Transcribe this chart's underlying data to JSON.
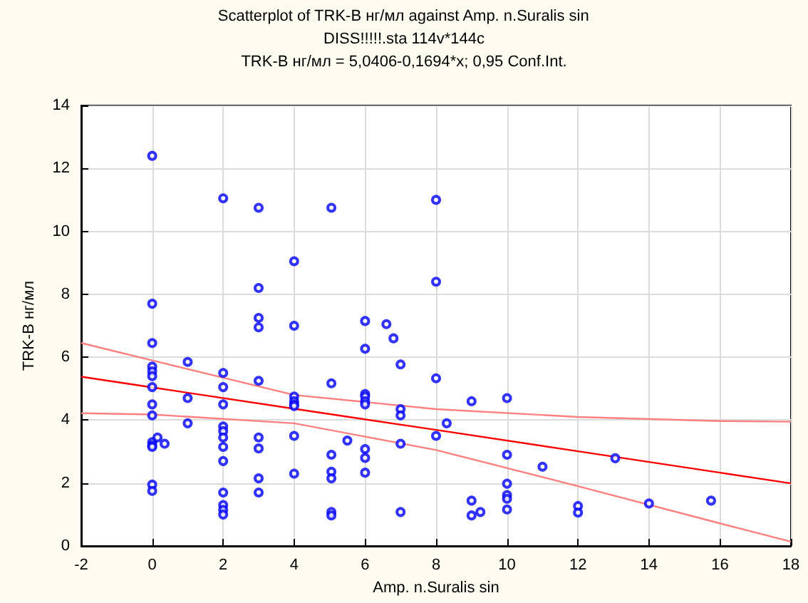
{
  "chart_data": {
    "type": "scatter",
    "title": "Scatterplot of TRK-B нг/мл against Amp. n.Suralis sin",
    "subtitle": "DISS!!!!!.sta 114v*144c",
    "annotations": [
      "TRK-B нг/мл = 5,0406-0,1694*x; 0,95 Conf.Int."
    ],
    "xlabel": "Amp. n.Suralis sin",
    "ylabel": "TRK-B нг/мл",
    "series": [
      {
        "color": "#0000ff",
        "x": [
          0,
          0,
          0,
          0,
          0,
          0,
          0,
          0,
          0,
          0,
          0,
          0,
          0,
          0,
          0.15,
          0.35,
          1,
          1,
          1,
          2,
          2,
          2,
          2,
          2,
          2,
          2,
          2,
          2,
          2,
          2,
          2,
          2,
          3,
          3,
          3,
          3,
          3,
          3,
          3,
          3,
          3,
          4,
          4,
          4,
          4,
          4,
          4,
          4,
          4,
          5.05,
          5.05,
          5.05,
          5.05,
          5.05,
          5.05,
          5.05,
          5.5,
          6,
          6,
          6,
          6,
          6,
          6,
          6,
          6,
          6,
          6.6,
          6.8,
          7,
          7,
          7,
          7,
          7,
          8,
          8,
          8,
          8,
          8.3,
          9,
          9,
          9,
          9.25,
          10,
          10,
          10,
          10,
          10,
          10,
          11,
          12,
          12,
          13.05,
          14,
          15.75
        ],
        "values": [
          12.4,
          7.7,
          6.45,
          5.7,
          5.55,
          5.4,
          5.05,
          4.5,
          4.15,
          3.3,
          3.2,
          3.15,
          1.95,
          1.75,
          3.45,
          3.25,
          5.85,
          4.7,
          3.9,
          11.05,
          5.5,
          5.05,
          4.5,
          3.8,
          3.65,
          3.45,
          3.15,
          2.7,
          1.7,
          1.3,
          1.15,
          1.0,
          10.75,
          8.2,
          7.25,
          6.95,
          5.25,
          3.45,
          3.1,
          2.15,
          1.7,
          9.05,
          7.0,
          4.75,
          4.6,
          4.5,
          4.45,
          3.5,
          2.3,
          10.75,
          5.17,
          2.9,
          2.36,
          2.15,
          1.08,
          0.97,
          3.35,
          7.15,
          6.27,
          4.83,
          4.75,
          4.6,
          4.5,
          3.08,
          2.8,
          2.33,
          7.05,
          6.6,
          5.77,
          4.35,
          4.15,
          3.25,
          1.08,
          11.0,
          8.4,
          5.33,
          3.5,
          3.9,
          4.6,
          1.44,
          0.97,
          1.08,
          4.7,
          2.9,
          1.98,
          1.62,
          1.5,
          1.16,
          2.52,
          1.27,
          1.06,
          2.79,
          1.35,
          1.44
        ]
      },
      {
        "type": "line",
        "marker": "none",
        "color": "#ff0000",
        "x": [
          -2,
          0,
          4,
          8,
          12,
          16,
          18
        ],
        "values": [
          5.38,
          5.04,
          4.36,
          3.69,
          3.01,
          2.33,
          1.99
        ]
      },
      {
        "type": "line",
        "marker": "none",
        "color": "#ff8080",
        "x": [
          -2,
          0,
          4,
          8,
          12,
          16,
          18
        ],
        "values": [
          4.22,
          4.18,
          3.9,
          3.05,
          1.9,
          0.72,
          0.14
        ]
      },
      {
        "type": "line",
        "marker": "none",
        "color": "#ff8080",
        "x": [
          -2,
          0,
          4,
          8,
          12,
          16,
          18
        ],
        "values": [
          6.45,
          5.9,
          4.8,
          4.35,
          4.1,
          3.97,
          3.95
        ]
      }
    ],
    "xlim": [
      -2,
      18
    ],
    "xticks": [
      -2,
      0,
      2,
      4,
      6,
      8,
      10,
      12,
      14,
      16,
      18
    ],
    "ylim": [
      0,
      14
    ],
    "yticks": [
      0,
      2,
      4,
      6,
      8,
      10,
      12,
      14
    ],
    "grid": true,
    "marker": "circle",
    "line_style": "solid"
  }
}
